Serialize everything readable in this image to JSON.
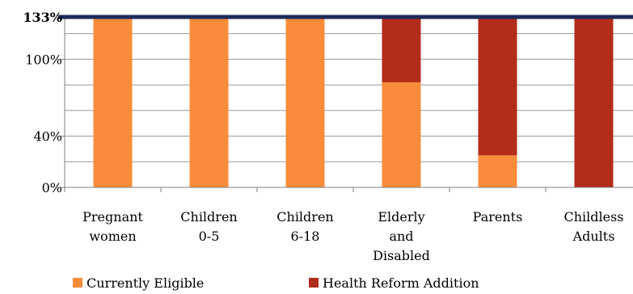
{
  "chart_data": {
    "type": "bar",
    "stacked": true,
    "categories": [
      [
        "Pregnant",
        "women"
      ],
      [
        "Children",
        "0-5"
      ],
      [
        "Children",
        "6-18"
      ],
      [
        "Elderly",
        "and",
        "Disabled"
      ],
      [
        "Parents"
      ],
      [
        "Childless",
        "Adults"
      ]
    ],
    "series": [
      {
        "name": "Currently Eligible",
        "color": "#f98c3a",
        "values": [
          133,
          133,
          133,
          82,
          25,
          0
        ]
      },
      {
        "name": "Health Reform Addition",
        "color": "#b22c1a",
        "values": [
          0,
          0,
          0,
          51,
          108,
          133
        ]
      }
    ],
    "ylim": [
      0,
      133
    ],
    "yticks": [
      {
        "value": 0,
        "label": "0%"
      },
      {
        "value": 40,
        "label": "40%"
      },
      {
        "value": 100,
        "label": "100%"
      },
      {
        "value": 133,
        "label": "133%",
        "bold": true
      }
    ],
    "gridlines": [
      20,
      40,
      60,
      80,
      100,
      120
    ],
    "reference_line": {
      "value": 133,
      "color": "#1c2b5a"
    },
    "grid": true,
    "legend": "bottom"
  }
}
